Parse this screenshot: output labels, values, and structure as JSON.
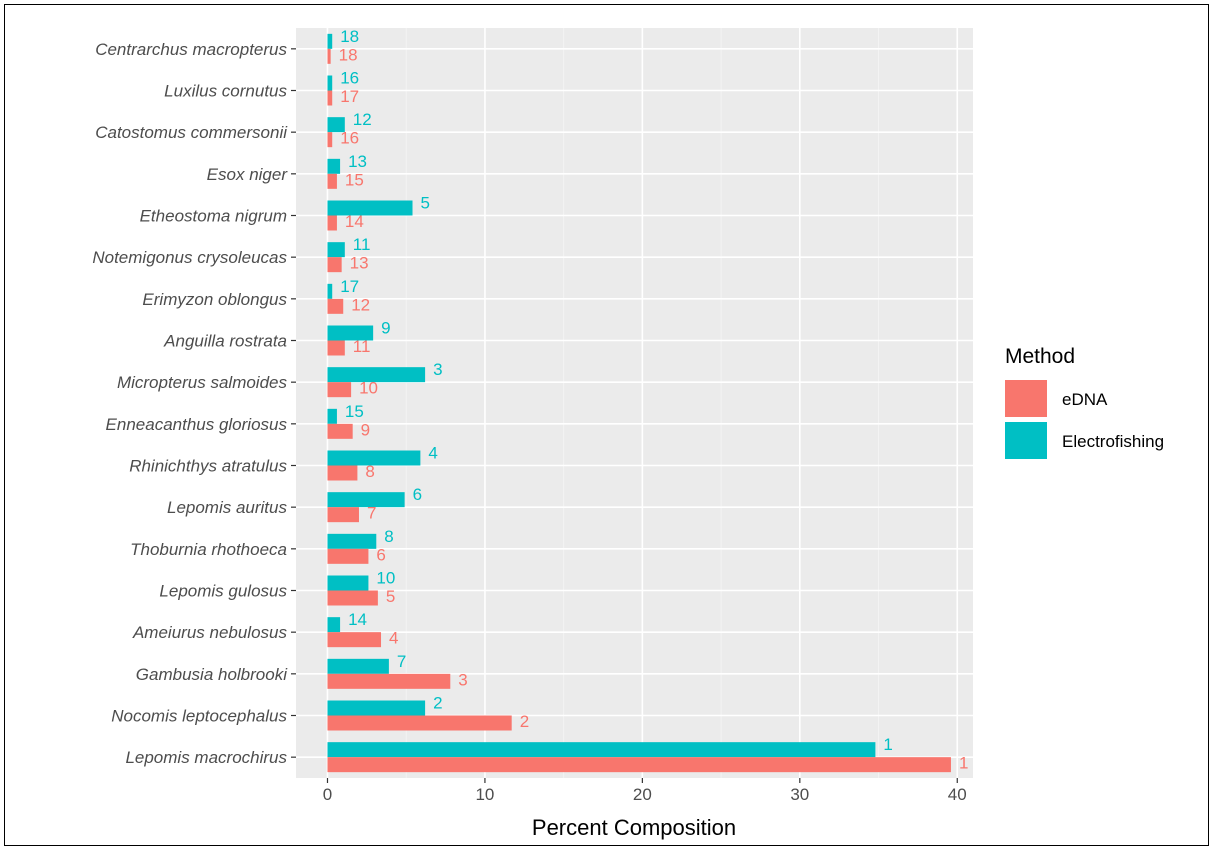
{
  "chart_data": {
    "type": "bar",
    "orientation": "horizontal",
    "xlabel": "Percent Composition",
    "ylabel": "",
    "xlim": [
      -2,
      41
    ],
    "xticks": [
      0,
      10,
      20,
      30,
      40
    ],
    "grid": true,
    "legend": {
      "title": "Method",
      "placement": "right"
    },
    "categories": [
      "Centrarchus macropterus",
      "Luxilus cornutus",
      "Catostomus commersonii",
      "Esox niger",
      "Etheostoma nigrum",
      "Notemigonus crysoleucas",
      "Erimyzon oblongus",
      "Anguilla rostrata",
      "Micropterus salmoides",
      "Enneacanthus gloriosus",
      "Rhinichthys atratulus",
      "Lepomis auritus",
      "Thoburnia rhothoeca",
      "Lepomis gulosus",
      "Ameiurus nebulosus",
      "Gambusia holbrooki",
      "Nocomis leptocephalus",
      "Lepomis macrochirus"
    ],
    "series": [
      {
        "name": "eDNA",
        "color": "#F8766D",
        "values": [
          0.2,
          0.3,
          0.3,
          0.6,
          0.6,
          0.9,
          1.0,
          1.1,
          1.5,
          1.6,
          1.9,
          2.0,
          2.6,
          3.2,
          3.4,
          7.8,
          11.7,
          39.6
        ],
        "labels": [
          "18",
          "17",
          "16",
          "15",
          "14",
          "13",
          "12",
          "11",
          "10",
          "9",
          "8",
          "7",
          "6",
          "5",
          "4",
          "3",
          "2",
          "1"
        ]
      },
      {
        "name": "Electrofishing",
        "color": "#00BFC4",
        "values": [
          0.3,
          0.3,
          1.1,
          0.8,
          5.4,
          1.1,
          0.3,
          2.9,
          6.2,
          0.6,
          5.9,
          4.9,
          3.1,
          2.6,
          0.8,
          3.9,
          6.2,
          34.8
        ],
        "labels": [
          "18",
          "16",
          "12",
          "13",
          "5",
          "11",
          "17",
          "9",
          "3",
          "15",
          "4",
          "6",
          "8",
          "10",
          "14",
          "7",
          "2",
          "1"
        ]
      }
    ]
  }
}
